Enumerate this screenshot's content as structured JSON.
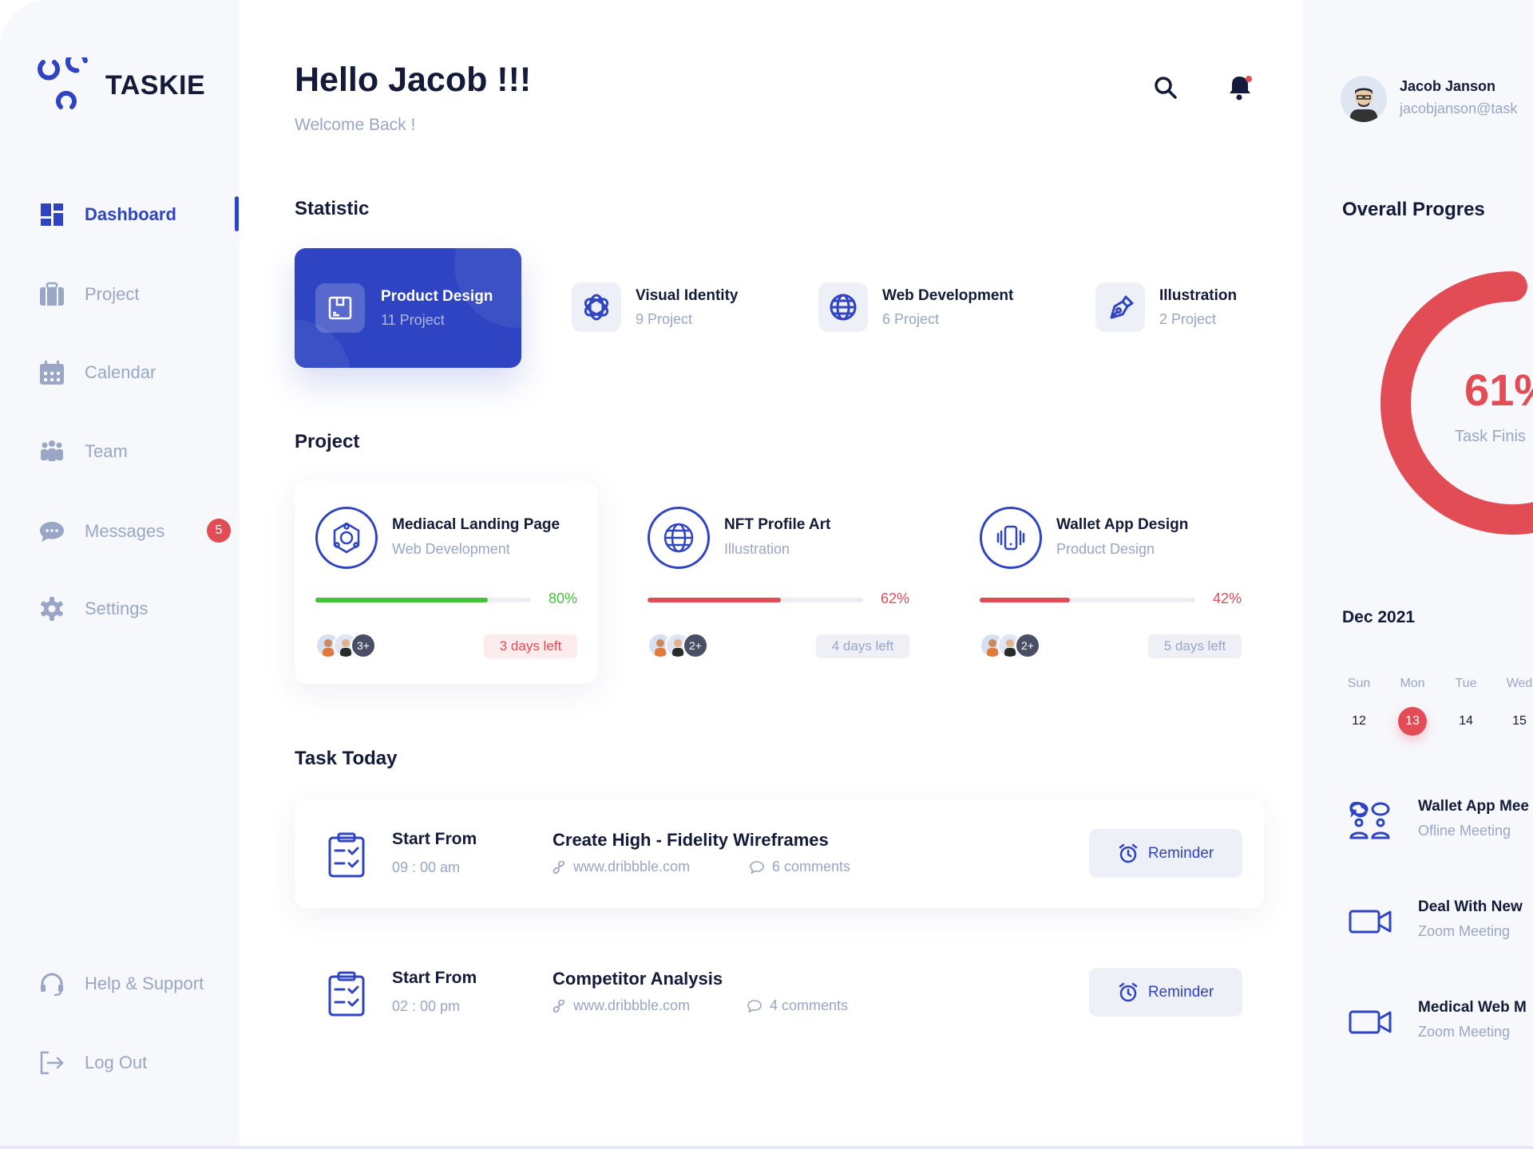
{
  "brand": {
    "name": "TASKIE",
    "accent": "#2f44c2",
    "danger": "#e24c55",
    "success": "#44c23a"
  },
  "sidebar": {
    "items": [
      {
        "label": "Dashboard",
        "icon": "grid-icon",
        "active": true
      },
      {
        "label": "Project",
        "icon": "briefcase-icon"
      },
      {
        "label": "Calendar",
        "icon": "calendar-icon"
      },
      {
        "label": "Team",
        "icon": "team-icon"
      },
      {
        "label": "Messages",
        "icon": "chat-icon",
        "badge": "5"
      },
      {
        "label": "Settings",
        "icon": "gear-icon"
      }
    ],
    "footer": [
      {
        "label": "Help & Support",
        "icon": "headset-icon"
      },
      {
        "label": "Log Out",
        "icon": "logout-icon"
      }
    ]
  },
  "header": {
    "greeting": "Hello Jacob !!!",
    "subtitle": "Welcome Back !"
  },
  "user": {
    "name": "Jacob Janson",
    "email": "jacobjanson@task"
  },
  "statistic": {
    "title": "Statistic",
    "items": [
      {
        "title": "Product Design",
        "count": "11 Project",
        "icon": "box-icon",
        "active": true
      },
      {
        "title": "Visual Identity",
        "count": "9 Project",
        "icon": "spiral-icon"
      },
      {
        "title": "Web Development",
        "count": "6 Project",
        "icon": "globe-icon"
      },
      {
        "title": "Illustration",
        "count": "2 Project",
        "icon": "pen-nib-icon"
      }
    ]
  },
  "projects": {
    "title": "Project",
    "items": [
      {
        "title": "Mediacal Landing Page",
        "category": "Web Development",
        "progress": 80,
        "progress_label": "80%",
        "color": "#44c23a",
        "extra": "3+",
        "due": "3 days left",
        "urgent": true,
        "icon": "network-icon"
      },
      {
        "title": "NFT Profile Art",
        "category": "Illustration",
        "progress": 62,
        "progress_label": "62%",
        "color": "#e24c55",
        "extra": "2+",
        "due": "4 days left",
        "icon": "globe-icon"
      },
      {
        "title": "Wallet App Design",
        "category": "Product Design",
        "progress": 42,
        "progress_label": "42%",
        "color": "#e24c55",
        "extra": "2+",
        "due": "5 days left",
        "icon": "phone-vibrate-icon"
      }
    ]
  },
  "tasks": {
    "title": "Task Today",
    "items": [
      {
        "start_label": "Start From",
        "time": "09 : 00 am",
        "title": "Create High - Fidelity Wireframes",
        "link": "www.dribbble.com",
        "comments": "6 comments",
        "button": "Reminder"
      },
      {
        "start_label": "Start From",
        "time": "02 : 00 pm",
        "title": "Competitor Analysis",
        "link": "www.dribbble.com",
        "comments": "4 comments",
        "button": "Reminder"
      }
    ]
  },
  "progress": {
    "title": "Overall Progres",
    "value": 61,
    "value_label": "61%",
    "caption": "Task Finis"
  },
  "calendar": {
    "month": "Dec 2021",
    "days": [
      {
        "name": "Sun",
        "date": "12"
      },
      {
        "name": "Mon",
        "date": "13",
        "selected": true
      },
      {
        "name": "Tue",
        "date": "14"
      },
      {
        "name": "Wed",
        "date": "15"
      }
    ]
  },
  "events": [
    {
      "title": "Wallet App Mee",
      "type": "Ofline Meeting",
      "icon": "meeting-icon"
    },
    {
      "title": "Deal With New",
      "type": "Zoom Meeting",
      "icon": "video-camera-icon"
    },
    {
      "title": "Medical Web M",
      "type": "Zoom Meeting",
      "icon": "video-camera-icon"
    }
  ]
}
